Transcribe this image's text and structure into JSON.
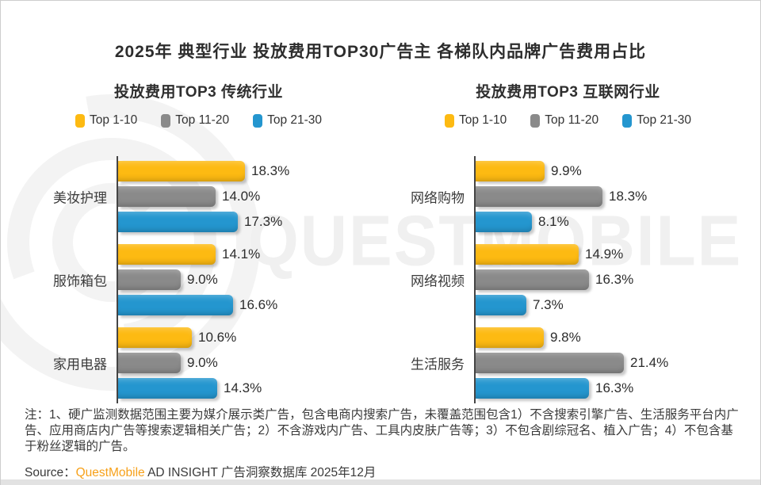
{
  "title": "2025年 典型行业 投放费用TOP30广告主 各梯队内品牌广告费用占比",
  "watermark": {
    "text": "QUESTMOBILE"
  },
  "colors": {
    "top_1_10": "#fdba12",
    "top_11_20": "#8a8a8a",
    "top_21_30": "#2496cf",
    "brand_orange": "#f7a11a",
    "axis": "#454545"
  },
  "chart_data": [
    {
      "type": "bar",
      "orientation": "horizontal",
      "title": "投放费用TOP3 传统行业",
      "legend": [
        "Top 1-10",
        "Top 11-20",
        "Top 21-30"
      ],
      "series_colors": [
        "#fdba12",
        "#8a8a8a",
        "#2496cf"
      ],
      "categories": [
        "美妆护理",
        "服饰箱包",
        "家用电器"
      ],
      "series": [
        {
          "name": "Top 1-10",
          "values": [
            18.3,
            14.1,
            10.6
          ]
        },
        {
          "name": "Top 11-20",
          "values": [
            14.0,
            9.0,
            9.0
          ]
        },
        {
          "name": "Top 21-30",
          "values": [
            17.3,
            16.6,
            14.3
          ]
        }
      ],
      "unit": "%",
      "value_decimals": 1,
      "xlim": [
        0,
        24
      ],
      "grid": false,
      "legend_position": "top"
    },
    {
      "type": "bar",
      "orientation": "horizontal",
      "title": "投放费用TOP3 互联网行业",
      "legend": [
        "Top 1-10",
        "Top 11-20",
        "Top 21-30"
      ],
      "series_colors": [
        "#fdba12",
        "#8a8a8a",
        "#2496cf"
      ],
      "categories": [
        "网络购物",
        "网络视频",
        "生活服务"
      ],
      "series": [
        {
          "name": "Top 1-10",
          "values": [
            9.9,
            14.9,
            9.8
          ]
        },
        {
          "name": "Top 11-20",
          "values": [
            18.3,
            16.3,
            21.4
          ]
        },
        {
          "name": "Top 21-30",
          "values": [
            8.1,
            7.3,
            16.3
          ]
        }
      ],
      "unit": "%",
      "value_decimals": 1,
      "xlim": [
        0,
        24
      ],
      "grid": false,
      "legend_position": "top"
    }
  ],
  "footnote": "注：1、硬广监测数据范围主要为媒介展示类广告，包含电商内搜索广告，未覆盖范围包含1）不含搜索引擎广告、生活服务平台内广告、应用商店内广告等搜索逻辑相关广告；2）不含游戏内广告、工具内皮肤广告等；3）不包含剧综冠名、植入广告；4）不包含基于粉丝逻辑的广告。",
  "source": {
    "prefix": "Source：",
    "brand": "QuestMobile",
    "suffix": " AD INSIGHT 广告洞察数据库 2025年12月"
  }
}
